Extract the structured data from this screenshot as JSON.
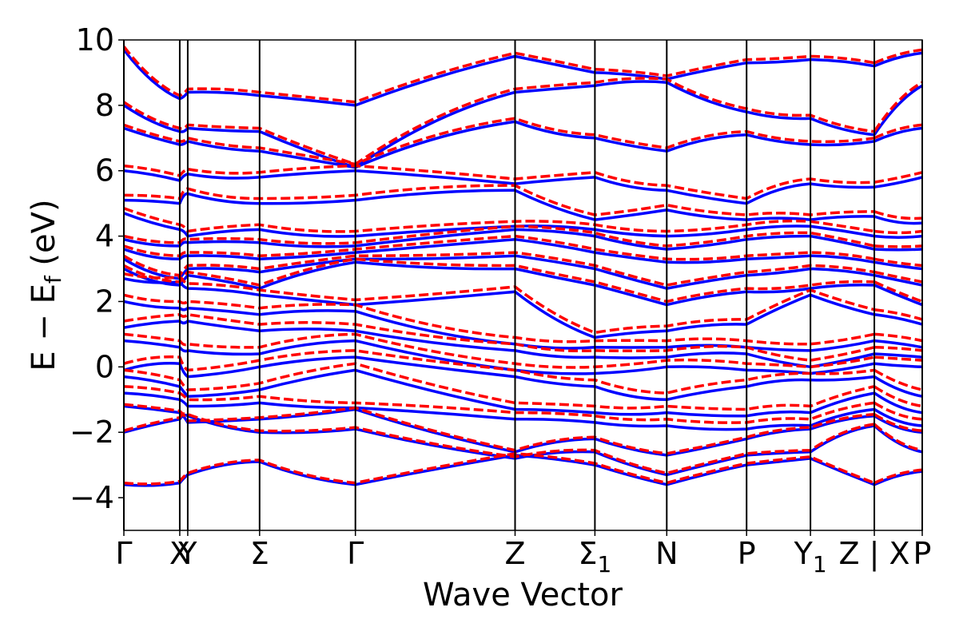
{
  "chart_data": {
    "type": "line",
    "xlabel": "Wave Vector",
    "ylabel": "E − E",
    "ylabel_subscript": "f",
    "ylabel_unit": " (eV)",
    "ylim": [
      -5,
      10
    ],
    "yticks": [
      {
        "value": -4,
        "label": "−4"
      },
      {
        "value": -2,
        "label": "−2"
      },
      {
        "value": 0,
        "label": "0"
      },
      {
        "value": 2,
        "label": "2"
      },
      {
        "value": 4,
        "label": "4"
      },
      {
        "value": 6,
        "label": "6"
      },
      {
        "value": 8,
        "label": "8"
      },
      {
        "value": 10,
        "label": "10"
      }
    ],
    "xlim": [
      0,
      10
    ],
    "high_symmetry_points": [
      {
        "x": 0.0,
        "label": "Γ",
        "sub": ""
      },
      {
        "x": 0.7,
        "label": "X",
        "sub": ""
      },
      {
        "x": 0.8,
        "label": "Y",
        "sub": ""
      },
      {
        "x": 1.7,
        "label": "Σ",
        "sub": ""
      },
      {
        "x": 2.9,
        "label": "Γ",
        "sub": ""
      },
      {
        "x": 4.9,
        "label": "Z",
        "sub": ""
      },
      {
        "x": 5.9,
        "label": "Σ",
        "sub": "1"
      },
      {
        "x": 6.8,
        "label": "N",
        "sub": ""
      },
      {
        "x": 7.8,
        "label": "P",
        "sub": ""
      },
      {
        "x": 8.6,
        "label": "Y",
        "sub": "1"
      },
      {
        "x": 9.4,
        "label": "Z | X",
        "sub": ""
      },
      {
        "x": 10.0,
        "label": "P",
        "sub": ""
      }
    ],
    "segments": [
      [
        0.0,
        9.4
      ],
      [
        9.4,
        10.0
      ]
    ],
    "series": [
      {
        "name": "",
        "style": "solid",
        "color": "#0000ff",
        "bands": [
          [
            -3.6,
            -3.55,
            -3.3,
            -2.9,
            -3.6,
            -2.7,
            -3.0,
            -3.6,
            -3.0,
            -2.8,
            -3.6,
            -3.2
          ],
          [
            -2.0,
            -1.6,
            -1.5,
            -2.0,
            -1.9,
            -2.8,
            -2.6,
            -3.3,
            -2.7,
            -2.6,
            -1.8,
            -2.6
          ],
          [
            -1.2,
            -1.4,
            -1.7,
            -1.6,
            -1.3,
            -2.6,
            -2.2,
            -2.7,
            -2.2,
            -1.9,
            -1.5,
            -2.0
          ],
          [
            -0.8,
            -1.0,
            -1.2,
            -1.1,
            -1.25,
            -1.6,
            -1.7,
            -1.8,
            -1.9,
            -1.8,
            -1.3,
            -1.8
          ],
          [
            -0.3,
            -0.6,
            -0.9,
            -0.7,
            -0.1,
            -1.3,
            -1.4,
            -1.4,
            -1.5,
            -1.4,
            -0.8,
            -1.4
          ],
          [
            -0.1,
            0.1,
            -0.3,
            0.0,
            0.3,
            -0.3,
            -0.6,
            -1.0,
            -0.6,
            -0.4,
            -0.3,
            -0.9
          ],
          [
            0.8,
            0.6,
            0.5,
            0.4,
            0.8,
            -0.1,
            -0.2,
            0.0,
            -0.1,
            -0.2,
            0.1,
            0.0
          ],
          [
            1.2,
            1.4,
            1.4,
            1.1,
            1.1,
            0.5,
            0.3,
            0.3,
            0.4,
            0.0,
            0.4,
            0.3
          ],
          [
            2.0,
            1.8,
            1.8,
            1.6,
            1.7,
            0.7,
            0.6,
            0.6,
            0.6,
            0.5,
            0.8,
            0.6
          ],
          [
            2.7,
            2.6,
            2.4,
            2.2,
            1.9,
            2.3,
            0.9,
            1.1,
            1.3,
            2.2,
            1.6,
            1.3
          ],
          [
            3.0,
            2.5,
            2.8,
            2.4,
            3.2,
            3.0,
            2.5,
            1.9,
            2.3,
            2.4,
            2.5,
            1.9
          ],
          [
            3.3,
            2.7,
            3.0,
            2.9,
            3.3,
            3.4,
            3.0,
            2.4,
            2.8,
            3.0,
            2.8,
            2.5
          ],
          [
            3.6,
            3.3,
            3.4,
            3.3,
            3.5,
            3.9,
            3.5,
            3.2,
            3.3,
            3.4,
            3.2,
            3.0
          ],
          [
            3.9,
            3.7,
            3.8,
            3.8,
            3.7,
            4.2,
            4.0,
            3.6,
            3.9,
            4.0,
            3.6,
            3.6
          ],
          [
            4.7,
            4.2,
            4.0,
            4.2,
            4.0,
            4.3,
            4.2,
            4.0,
            4.2,
            4.3,
            4.0,
            4.0
          ],
          [
            5.1,
            5.0,
            5.3,
            5.0,
            5.1,
            5.4,
            4.5,
            4.8,
            4.5,
            4.5,
            4.6,
            4.4
          ],
          [
            6.0,
            5.7,
            5.9,
            5.8,
            6.0,
            5.6,
            5.8,
            5.4,
            5.0,
            5.6,
            5.5,
            5.8
          ],
          [
            7.3,
            6.8,
            6.9,
            6.6,
            6.1,
            7.5,
            7.0,
            6.6,
            7.1,
            6.8,
            6.9,
            7.3
          ],
          [
            8.0,
            7.2,
            7.3,
            7.2,
            6.1,
            8.4,
            8.6,
            8.7,
            7.8,
            7.6,
            7.1,
            8.6
          ],
          [
            9.7,
            8.2,
            8.4,
            8.3,
            8.0,
            9.5,
            9.0,
            8.8,
            9.3,
            9.4,
            9.2,
            9.6
          ]
        ]
      },
      {
        "name": "",
        "style": "dashed",
        "color": "#ff0000",
        "bands": [
          [
            -3.55,
            -3.5,
            -3.25,
            -2.85,
            -3.55,
            -2.65,
            -2.95,
            -3.55,
            -2.95,
            -2.75,
            -3.55,
            -3.15
          ],
          [
            -1.95,
            -1.55,
            -1.45,
            -1.95,
            -1.85,
            -2.75,
            -2.55,
            -3.25,
            -2.65,
            -2.55,
            -1.75,
            -2.55
          ],
          [
            -1.15,
            -1.35,
            -1.65,
            -1.55,
            -1.25,
            -2.55,
            -2.15,
            -2.65,
            -2.15,
            -1.85,
            -1.45,
            -1.95
          ],
          [
            -0.6,
            -0.8,
            -1.0,
            -0.9,
            -1.1,
            -1.4,
            -1.5,
            -1.6,
            -1.7,
            -1.6,
            -1.1,
            -1.6
          ],
          [
            -0.1,
            -0.4,
            -0.7,
            -0.5,
            0.1,
            -1.1,
            -1.2,
            -1.2,
            -1.3,
            -1.2,
            -0.6,
            -1.2
          ],
          [
            0.1,
            0.3,
            -0.1,
            0.2,
            0.5,
            -0.1,
            -0.4,
            -0.8,
            -0.4,
            -0.2,
            -0.1,
            -0.7
          ],
          [
            1.0,
            0.8,
            0.7,
            0.6,
            1.0,
            0.1,
            0.0,
            0.2,
            0.1,
            0.0,
            0.3,
            0.2
          ],
          [
            1.4,
            1.6,
            1.6,
            1.3,
            1.3,
            0.7,
            0.5,
            0.5,
            0.6,
            0.2,
            0.6,
            0.5
          ],
          [
            2.2,
            2.0,
            2.0,
            1.8,
            1.9,
            0.9,
            0.8,
            0.8,
            0.8,
            0.7,
            1.0,
            0.8
          ],
          [
            2.85,
            2.75,
            2.55,
            2.35,
            2.05,
            2.45,
            1.05,
            1.25,
            1.45,
            2.35,
            1.75,
            1.45
          ],
          [
            3.1,
            2.6,
            2.9,
            2.5,
            3.3,
            3.1,
            2.6,
            2.0,
            2.4,
            2.5,
            2.6,
            2.0
          ],
          [
            3.4,
            2.8,
            3.1,
            3.0,
            3.4,
            3.5,
            3.1,
            2.5,
            2.9,
            3.1,
            2.9,
            2.6
          ],
          [
            3.7,
            3.4,
            3.5,
            3.4,
            3.6,
            4.0,
            3.6,
            3.3,
            3.4,
            3.5,
            3.3,
            3.1
          ],
          [
            4.0,
            3.8,
            3.9,
            3.9,
            3.8,
            4.3,
            4.1,
            3.7,
            4.0,
            4.1,
            3.7,
            3.7
          ],
          [
            4.85,
            4.35,
            4.15,
            4.35,
            4.15,
            4.45,
            4.35,
            4.15,
            4.35,
            4.45,
            4.15,
            4.15
          ],
          [
            5.25,
            5.15,
            5.45,
            5.15,
            5.25,
            5.55,
            4.65,
            4.95,
            4.65,
            4.65,
            4.75,
            4.55
          ],
          [
            6.15,
            5.85,
            6.05,
            5.95,
            6.15,
            5.75,
            5.95,
            5.55,
            5.15,
            5.75,
            5.65,
            5.95
          ],
          [
            7.4,
            6.9,
            7.0,
            6.7,
            6.2,
            7.6,
            7.1,
            6.7,
            7.2,
            6.9,
            7.0,
            7.4
          ],
          [
            8.1,
            7.3,
            7.4,
            7.3,
            6.2,
            8.5,
            8.7,
            8.8,
            7.9,
            7.7,
            7.2,
            8.7
          ],
          [
            9.8,
            8.3,
            8.5,
            8.4,
            8.1,
            9.6,
            9.1,
            8.9,
            9.4,
            9.5,
            9.3,
            9.7
          ]
        ]
      }
    ]
  }
}
